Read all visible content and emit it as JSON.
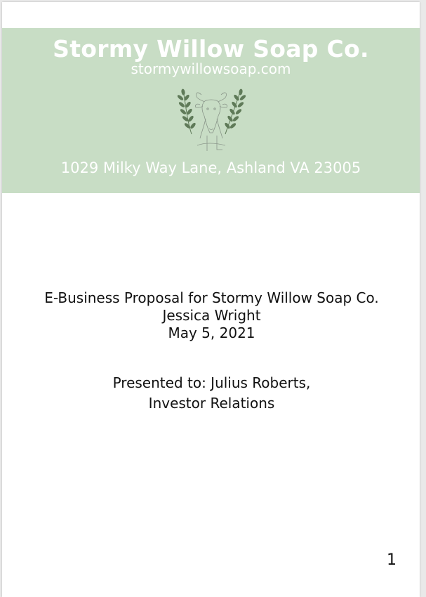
{
  "header": {
    "company_name": "Stormy Willow Soap Co.",
    "website": "stormywillowsoap.com",
    "logo_icon": "goat-with-laurel-logo-icon",
    "address": "1029 Milky Way Lane, Ashland VA 23005",
    "banner_color": "#c8ddc5",
    "text_color": "#ffffff"
  },
  "title_block": {
    "title": "E-Business Proposal for Stormy Willow Soap Co.",
    "author": "Jessica Wright",
    "date": "May 5, 2021"
  },
  "presented": {
    "line1": "Presented to: Julius Roberts,",
    "line2": "Investor Relations"
  },
  "footer": {
    "page_number": "1"
  }
}
